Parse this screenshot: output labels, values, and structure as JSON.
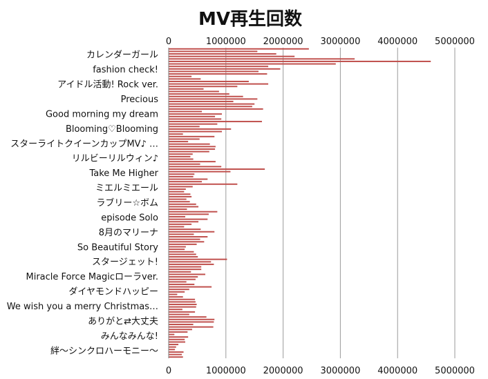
{
  "chart_data": {
    "type": "bar",
    "orientation": "horizontal",
    "title": "MV再生回数",
    "xlabel": "",
    "ylabel": "",
    "xlim": [
      0,
      5000000
    ],
    "xticks": [
      0,
      1000000,
      2000000,
      3000000,
      4000000,
      5000000
    ],
    "xtick_labels": [
      "0",
      "1000000",
      "2000000",
      "3000000",
      "4000000",
      "5000000"
    ],
    "grid": true,
    "bar_color": "#c0504d",
    "labeled_categories": [
      "カレンダーガール",
      "fashion check!",
      "アイドル活動! Rock ver.",
      "Precious",
      "Good morning my dream",
      "Blooming♡Blooming",
      "スターライトクイーンカップMV♪ …",
      "リルビーリルウィン♪",
      "Take Me Higher",
      "ミエルミエール",
      "ラブリー☆ボム",
      "episode Solo",
      "8月のマリーナ",
      "So Beautiful Story",
      "スタージェット!",
      "Miracle Force Magicローラver.",
      "ダイヤモンドハッピー",
      "We wish you a merry Christmas…",
      "ありがと⇄大丈夫",
      "みんなみんな!",
      "絆～シンクロハーモニー～"
    ],
    "values": [
      2450000,
      1550000,
      1880000,
      2200000,
      3250000,
      4580000,
      2920000,
      1740000,
      1950000,
      1570000,
      1720000,
      400000,
      560000,
      1400000,
      1740000,
      1200000,
      610000,
      880000,
      1060000,
      1300000,
      1550000,
      1130000,
      1500000,
      1460000,
      1650000,
      580000,
      930000,
      810000,
      920000,
      1630000,
      850000,
      540000,
      1090000,
      930000,
      250000,
      800000,
      540000,
      340000,
      720000,
      820000,
      810000,
      710000,
      420000,
      380000,
      430000,
      820000,
      550000,
      920000,
      1680000,
      1080000,
      450000,
      430000,
      680000,
      580000,
      1200000,
      420000,
      300000,
      270000,
      380000,
      400000,
      310000,
      370000,
      480000,
      520000,
      320000,
      850000,
      700000,
      290000,
      680000,
      520000,
      400000,
      270000,
      560000,
      800000,
      440000,
      680000,
      550000,
      620000,
      490000,
      300000,
      280000,
      440000,
      480000,
      510000,
      1020000,
      740000,
      790000,
      570000,
      570000,
      390000,
      640000,
      510000,
      470000,
      310000,
      450000,
      750000,
      360000,
      280000,
      150000,
      250000,
      460000,
      470000,
      490000,
      480000,
      240000,
      460000,
      360000,
      660000,
      800000,
      790000,
      430000,
      780000,
      410000,
      330000,
      100000,
      340000,
      280000,
      290000,
      170000,
      130000,
      110000,
      260000,
      230000,
      250000
    ]
  }
}
